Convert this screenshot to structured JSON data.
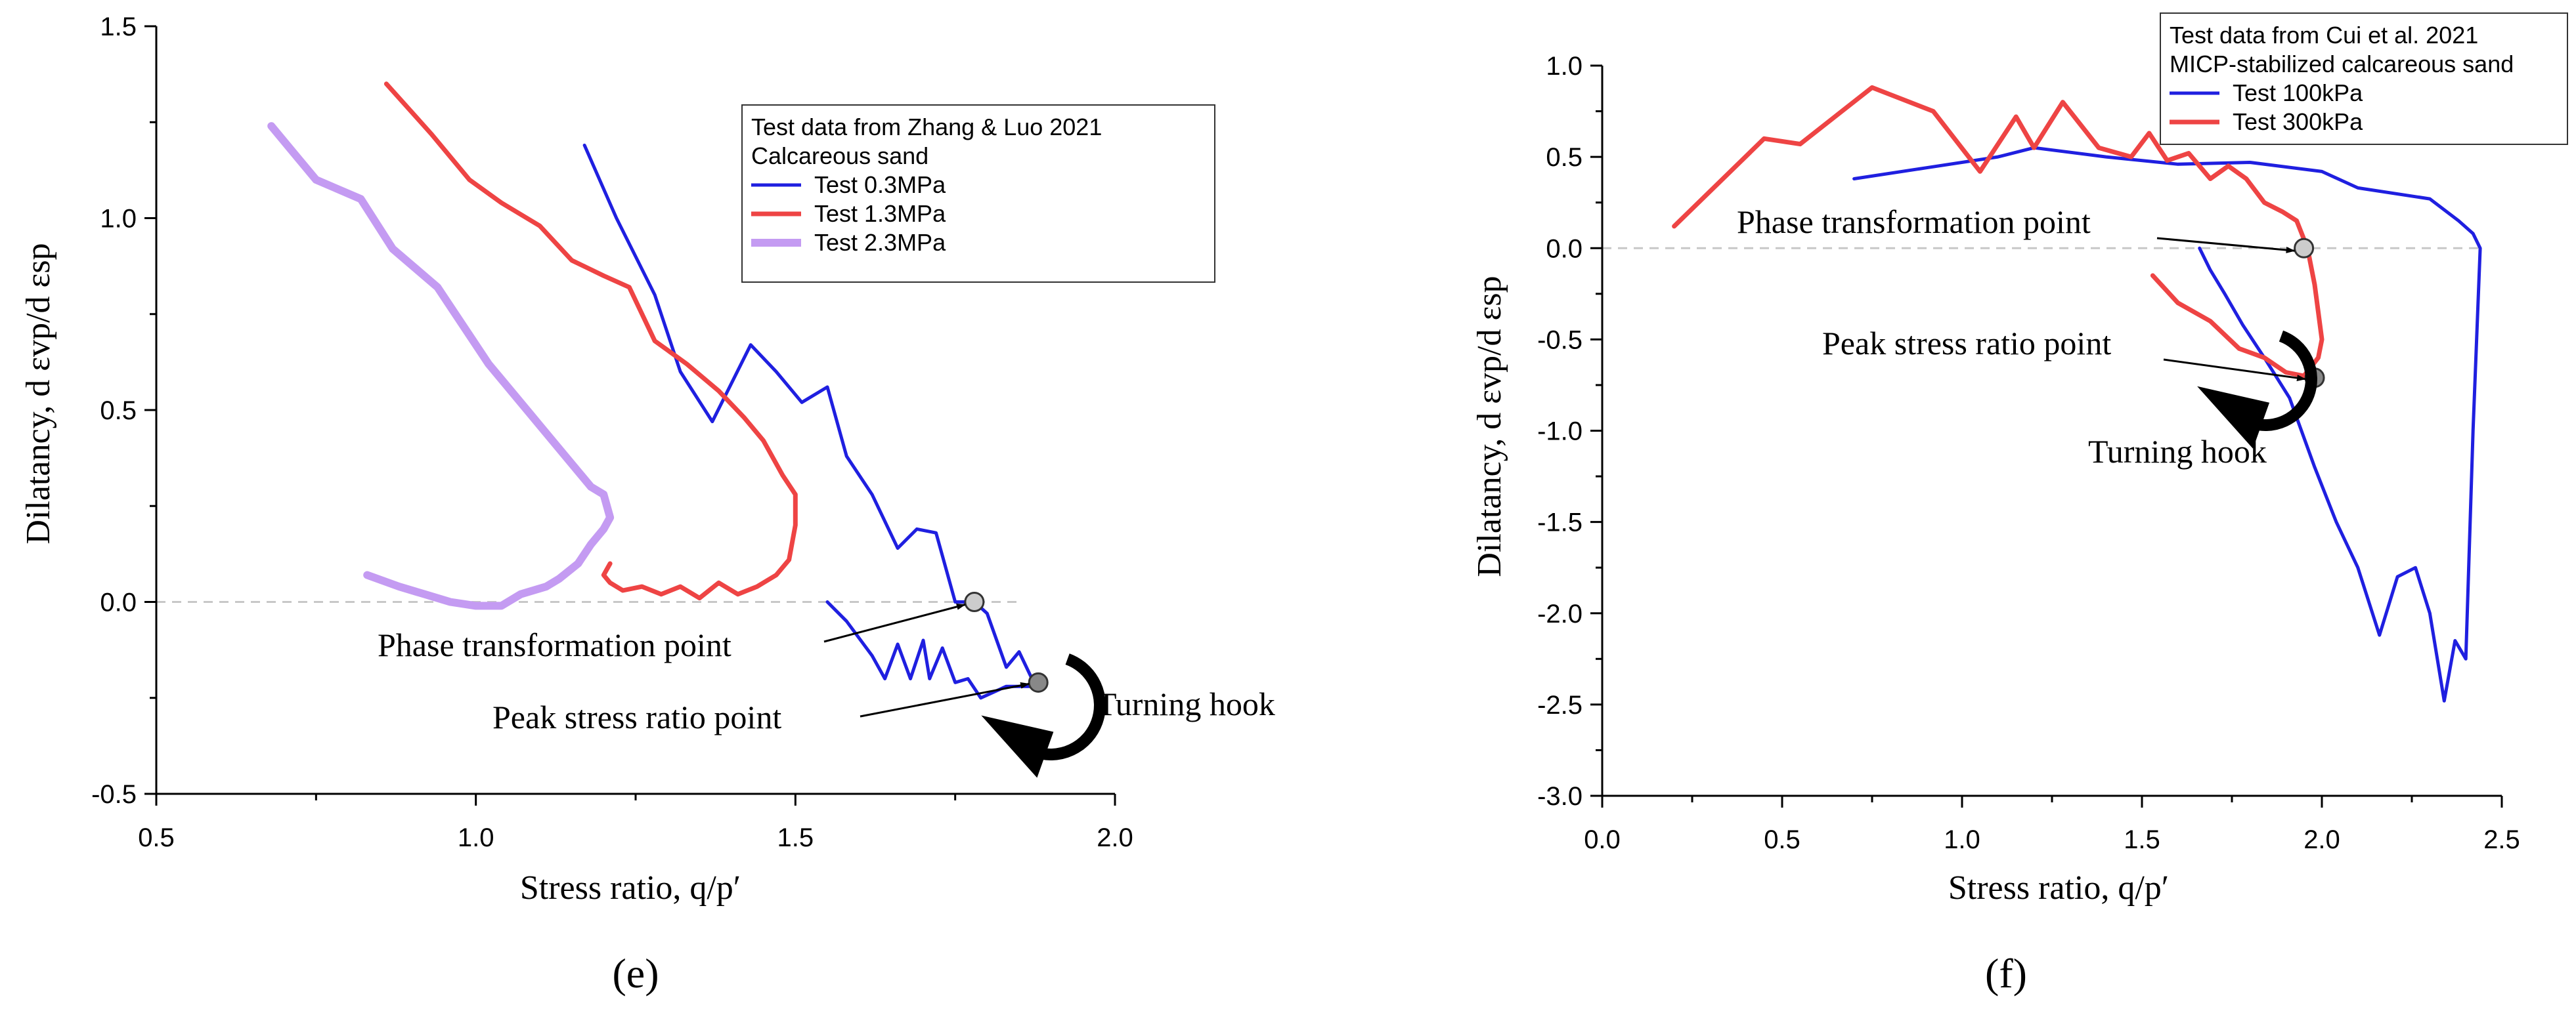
{
  "chart_data": [
    {
      "type": "line",
      "panel_label": "(e)",
      "xlabel": "Stress ratio,  q/p′",
      "ylabel": "Dilatancy, d εvp/d εsp",
      "xlim": [
        0.5,
        2.0
      ],
      "ylim": [
        -0.5,
        1.5
      ],
      "x_ticks": [
        "0.5",
        "1.0",
        "1.5",
        "2.0"
      ],
      "y_ticks": [
        "-0.5",
        "0.0",
        "0.5",
        "1.0",
        "1.5"
      ],
      "legend": {
        "placement": "top-right",
        "title_lines": [
          "Test data from Zhang & Luo  2021",
          "Calcareous sand"
        ]
      },
      "series": [
        {
          "name": "Test 0.3MPa",
          "color": "#1f1fe0",
          "x": [
            1.17,
            1.22,
            1.28,
            1.32,
            1.37,
            1.43,
            1.47,
            1.51,
            1.55,
            1.58,
            1.62,
            1.66,
            1.69,
            1.72,
            1.75,
            1.78,
            1.8,
            1.83,
            1.85,
            1.87,
            1.88,
            1.83,
            1.79,
            1.77,
            1.75,
            1.73,
            1.71,
            1.7,
            1.68,
            1.66,
            1.64,
            1.62,
            1.58,
            1.55
          ],
          "y": [
            1.19,
            1.0,
            0.8,
            0.6,
            0.47,
            0.67,
            0.6,
            0.52,
            0.56,
            0.38,
            0.28,
            0.14,
            0.19,
            0.18,
            0.0,
            0.0,
            -0.03,
            -0.17,
            -0.13,
            -0.2,
            -0.22,
            -0.22,
            -0.25,
            -0.2,
            -0.21,
            -0.12,
            -0.2,
            -0.1,
            -0.2,
            -0.11,
            -0.2,
            -0.14,
            -0.05,
            0.0
          ]
        },
        {
          "name": "Test 1.3MPa",
          "color": "#ee4444",
          "x": [
            0.86,
            0.93,
            0.99,
            1.04,
            1.1,
            1.15,
            1.2,
            1.24,
            1.28,
            1.33,
            1.38,
            1.42,
            1.45,
            1.48,
            1.5,
            1.5,
            1.49,
            1.47,
            1.44,
            1.41,
            1.38,
            1.35,
            1.32,
            1.29,
            1.26,
            1.23,
            1.21,
            1.2,
            1.21
          ],
          "y": [
            1.35,
            1.22,
            1.1,
            1.04,
            0.98,
            0.89,
            0.85,
            0.82,
            0.68,
            0.62,
            0.55,
            0.48,
            0.42,
            0.33,
            0.28,
            0.2,
            0.11,
            0.07,
            0.04,
            0.02,
            0.05,
            0.01,
            0.04,
            0.02,
            0.04,
            0.03,
            0.05,
            0.07,
            0.1
          ]
        },
        {
          "name": "Test 2.3MPa",
          "color": "#c49bf2",
          "x": [
            0.68,
            0.72,
            0.75,
            0.82,
            0.87,
            0.94,
            0.98,
            1.02,
            1.06,
            1.1,
            1.14,
            1.18,
            1.2,
            1.21,
            1.2,
            1.18,
            1.16,
            1.13,
            1.11,
            1.07,
            1.04,
            1.0,
            0.96,
            0.92,
            0.88,
            0.83
          ],
          "y": [
            1.24,
            1.16,
            1.1,
            1.05,
            0.92,
            0.82,
            0.72,
            0.62,
            0.54,
            0.46,
            0.38,
            0.3,
            0.28,
            0.22,
            0.19,
            0.15,
            0.1,
            0.06,
            0.04,
            0.02,
            -0.01,
            -0.01,
            0.0,
            0.02,
            0.04,
            0.07
          ]
        }
      ],
      "markers": [
        {
          "name": "phase-transformation-point",
          "x": 1.78,
          "y": 0.0,
          "color": "#cccccc"
        },
        {
          "name": "peak-stress-ratio-point",
          "x": 1.88,
          "y": -0.21,
          "color": "#888888"
        }
      ],
      "annotations": {
        "phase": "Phase transformation point",
        "peak": "Peak stress ratio point",
        "hook": "Turning hook"
      }
    },
    {
      "type": "line",
      "panel_label": "(f)",
      "xlabel": "Stress ratio,  q/p′",
      "ylabel": "Dilatancy, d εvp/d εsp",
      "xlim": [
        0.0,
        2.5
      ],
      "ylim": [
        -3.0,
        1.0
      ],
      "x_ticks": [
        "0.0",
        "0.5",
        "1.0",
        "1.5",
        "2.0",
        "2.5"
      ],
      "y_ticks": [
        "-3.0",
        "-2.5",
        "-2.0",
        "-1.5",
        "-1.0",
        "-0.5",
        "0.0",
        "0.5",
        "1.0"
      ],
      "legend": {
        "placement": "top-right",
        "title_lines": [
          "Test data from Cui et al. 2021",
          "MICP-stabilized calcareous sand"
        ]
      },
      "series": [
        {
          "name": "Test 100kPa",
          "color": "#1f1fe0",
          "x": [
            0.7,
            0.9,
            1.1,
            1.2,
            1.4,
            1.6,
            1.8,
            2.0,
            2.1,
            2.3,
            2.38,
            2.42,
            2.44,
            2.42,
            2.4,
            2.37,
            2.34,
            2.3,
            2.26,
            2.21,
            2.16,
            2.1,
            2.04,
            1.98,
            1.91,
            1.84,
            1.78,
            1.73,
            1.69,
            1.66
          ],
          "y": [
            0.38,
            0.44,
            0.5,
            0.55,
            0.5,
            0.46,
            0.47,
            0.42,
            0.33,
            0.27,
            0.15,
            0.08,
            0.0,
            -1.0,
            -2.25,
            -2.15,
            -2.48,
            -2.0,
            -1.75,
            -1.8,
            -2.12,
            -1.75,
            -1.5,
            -1.2,
            -0.82,
            -0.6,
            -0.42,
            -0.25,
            -0.12,
            0.0
          ]
        },
        {
          "name": "Test 300kPa",
          "color": "#ee4444",
          "x": [
            0.2,
            0.45,
            0.55,
            0.75,
            0.92,
            1.05,
            1.15,
            1.2,
            1.28,
            1.38,
            1.47,
            1.52,
            1.57,
            1.63,
            1.69,
            1.74,
            1.79,
            1.84,
            1.89,
            1.93,
            1.96,
            1.98,
            2.0,
            1.99,
            1.95,
            1.9,
            1.84,
            1.77,
            1.69,
            1.6,
            1.53
          ],
          "y": [
            0.12,
            0.6,
            0.57,
            0.88,
            0.75,
            0.42,
            0.72,
            0.55,
            0.8,
            0.55,
            0.5,
            0.63,
            0.48,
            0.52,
            0.38,
            0.45,
            0.38,
            0.25,
            0.2,
            0.15,
            0.0,
            -0.2,
            -0.5,
            -0.6,
            -0.7,
            -0.68,
            -0.6,
            -0.55,
            -0.4,
            -0.3,
            -0.15
          ]
        }
      ],
      "markers": [
        {
          "name": "phase-transformation-point",
          "x": 1.95,
          "y": 0.0,
          "color": "#cccccc"
        },
        {
          "name": "peak-stress-ratio-point",
          "x": 1.98,
          "y": -0.71,
          "color": "#888888"
        }
      ],
      "annotations": {
        "phase": "Phase transformation point",
        "peak": "Peak stress ratio point",
        "hook": "Turning hook"
      }
    }
  ]
}
